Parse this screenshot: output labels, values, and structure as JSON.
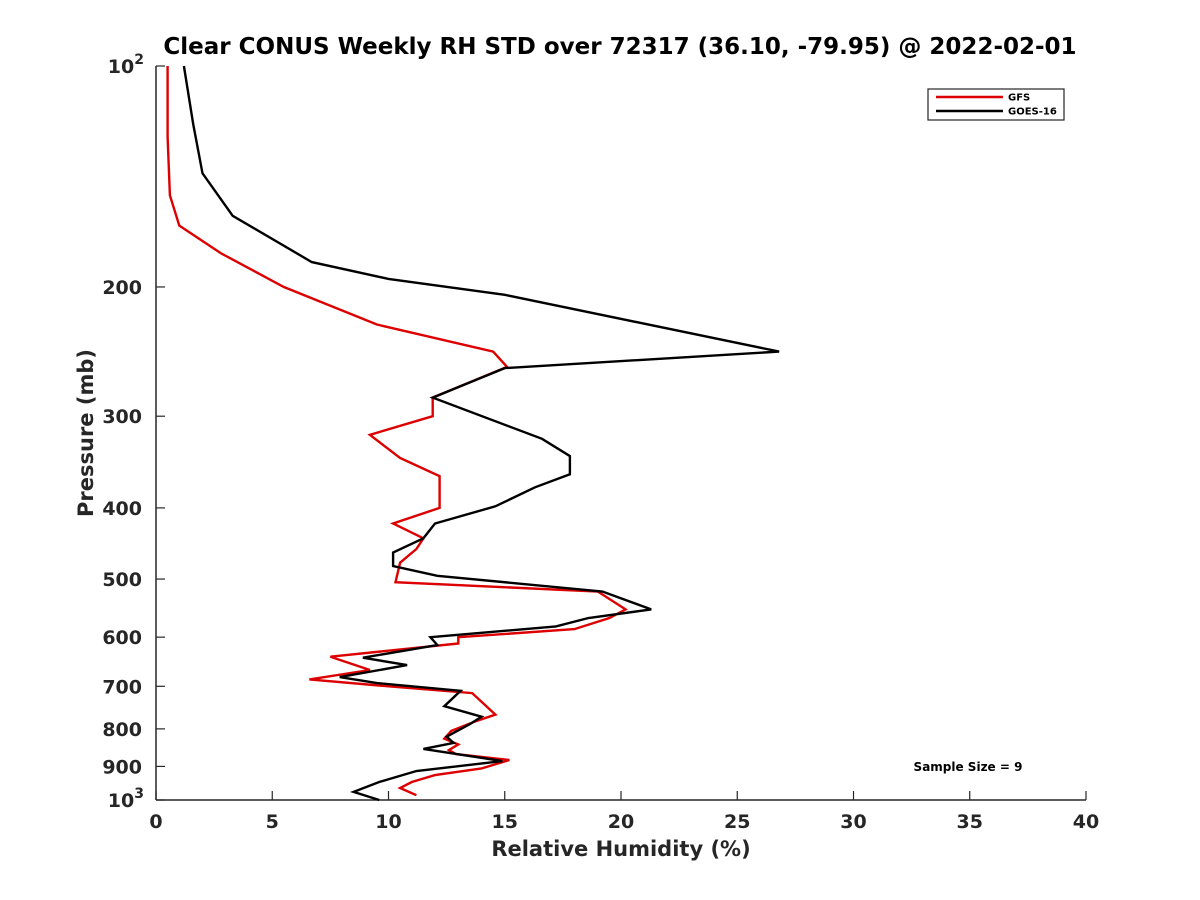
{
  "chart_data": {
    "type": "line",
    "title": "Clear CONUS Weekly RH STD over 72317 (36.10, -79.95) @ 2022-02-01",
    "xlabel": "Relative Humidity (%)",
    "ylabel": "Pressure (mb)",
    "xlim": [
      0,
      40
    ],
    "ylim": [
      100,
      1000
    ],
    "y_scale": "log",
    "y_reversed": true,
    "x_ticks": [
      0,
      5,
      10,
      15,
      20,
      25,
      30,
      35,
      40
    ],
    "x_tick_labels": [
      "0",
      "5",
      "10",
      "15",
      "20",
      "25",
      "30",
      "35",
      "40"
    ],
    "y_ticks": [
      100,
      200,
      300,
      400,
      500,
      600,
      700,
      800,
      900,
      1000
    ],
    "y_tick_labels": [
      "",
      "200",
      "300",
      "400",
      "500",
      "600",
      "700",
      "800",
      "900",
      ""
    ],
    "y_tick_base": "10",
    "y_tick_exponents": {
      "100": "2",
      "1000": "3"
    },
    "grid": false,
    "legend_position": "top-right",
    "annotation": "Sample Size = 9",
    "series": [
      {
        "name": "GFS",
        "color": "#dd0000",
        "points": [
          [
            0.5,
            100
          ],
          [
            0.5,
            125
          ],
          [
            0.6,
            150
          ],
          [
            1.0,
            165
          ],
          [
            2.8,
            180
          ],
          [
            5.5,
            200
          ],
          [
            9.5,
            225
          ],
          [
            14.5,
            245
          ],
          [
            15.1,
            257
          ],
          [
            11.9,
            283
          ],
          [
            11.9,
            300
          ],
          [
            9.2,
            318
          ],
          [
            10.5,
            342
          ],
          [
            12.2,
            362
          ],
          [
            12.2,
            400
          ],
          [
            10.2,
            420
          ],
          [
            11.5,
            440
          ],
          [
            11.2,
            455
          ],
          [
            10.5,
            475
          ],
          [
            10.3,
            505
          ],
          [
            19.0,
            520
          ],
          [
            20.2,
            550
          ],
          [
            19.5,
            565
          ],
          [
            18.0,
            585
          ],
          [
            13.0,
            600
          ],
          [
            13.0,
            612
          ],
          [
            7.5,
            638
          ],
          [
            9.2,
            665
          ],
          [
            6.6,
            685
          ],
          [
            10.0,
            700
          ],
          [
            13.6,
            715
          ],
          [
            14.6,
            765
          ],
          [
            13.8,
            780
          ],
          [
            12.7,
            805
          ],
          [
            12.4,
            825
          ],
          [
            13.0,
            840
          ],
          [
            12.6,
            855
          ],
          [
            12.9,
            866
          ],
          [
            15.2,
            882
          ],
          [
            14.0,
            906
          ],
          [
            12.0,
            925
          ],
          [
            11.0,
            945
          ],
          [
            10.5,
            963
          ],
          [
            11.2,
            985
          ]
        ]
      },
      {
        "name": "GOES-16",
        "color": "#000000",
        "points": [
          [
            1.2,
            100
          ],
          [
            1.6,
            120
          ],
          [
            2.0,
            140
          ],
          [
            3.3,
            160
          ],
          [
            6.7,
            185
          ],
          [
            10.0,
            195
          ],
          [
            15.0,
            205
          ],
          [
            26.8,
            245
          ],
          [
            15.0,
            258
          ],
          [
            11.9,
            283
          ],
          [
            16.6,
            322
          ],
          [
            17.8,
            340
          ],
          [
            17.8,
            360
          ],
          [
            16.3,
            375
          ],
          [
            14.6,
            398
          ],
          [
            12.0,
            420
          ],
          [
            11.5,
            440
          ],
          [
            10.2,
            460
          ],
          [
            10.2,
            480
          ],
          [
            12.1,
            495
          ],
          [
            19.2,
            520
          ],
          [
            21.3,
            550
          ],
          [
            18.6,
            565
          ],
          [
            17.2,
            580
          ],
          [
            11.8,
            600
          ],
          [
            12.1,
            615
          ],
          [
            8.9,
            640
          ],
          [
            10.8,
            655
          ],
          [
            7.9,
            680
          ],
          [
            9.5,
            693
          ],
          [
            13.1,
            710
          ],
          [
            12.4,
            745
          ],
          [
            14.0,
            770
          ],
          [
            13.5,
            788
          ],
          [
            12.5,
            820
          ],
          [
            12.8,
            836
          ],
          [
            11.5,
            852
          ],
          [
            14.9,
            885
          ],
          [
            11.2,
            913
          ],
          [
            9.6,
            945
          ],
          [
            8.5,
            975
          ],
          [
            9.6,
            1000
          ]
        ]
      }
    ]
  }
}
